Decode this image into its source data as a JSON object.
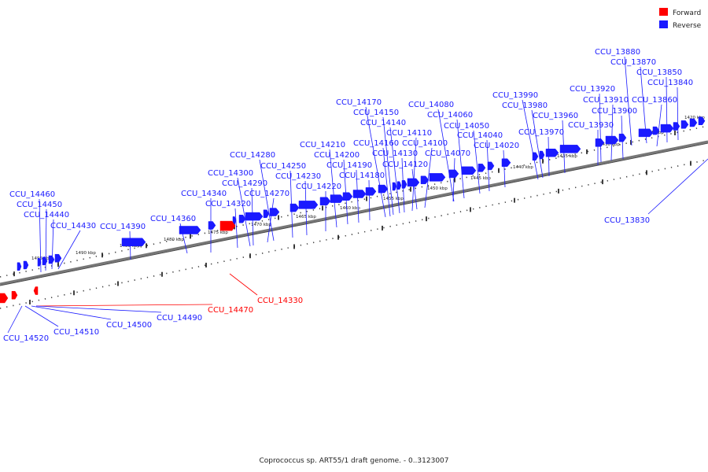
{
  "legend": {
    "forward_label": "Forward",
    "reverse_label": "Reverse",
    "forward_color": "#ff0000",
    "reverse_color": "#1a1aff"
  },
  "caption": "Coprococcus sp. ART55/1 draft genome. - 0..3123007",
  "kbp_ticks": [
    "1420 kbp",
    "1425 kbp",
    "1430 kbp",
    "1435 kbp",
    "1440 kbp",
    "1445 kbp",
    "1450 kbp",
    "1455 kbp",
    "1460 kbp",
    "1465 kbp",
    "1470 kbp",
    "1475 kbp",
    "1480 kbp",
    "1485 kbp",
    "1490 kbp",
    "1495 kbp"
  ],
  "reverse_genes": [
    "CCU_13880",
    "CCU_13870",
    "CCU_13850",
    "CCU_13840",
    "CCU_13920",
    "CCU_13910",
    "CCU_13860",
    "CCU_13900",
    "CCU_13930",
    "CCU_13990",
    "CCU_13980",
    "CCU_13960",
    "CCU_13970",
    "CCU_14080",
    "CCU_14060",
    "CCU_14050",
    "CCU_14040",
    "CCU_14020",
    "CCU_14170",
    "CCU_14150",
    "CCU_14140",
    "CCU_14110",
    "CCU_14100",
    "CCU_14070",
    "CCU_14160",
    "CCU_14130",
    "CCU_14120",
    "CCU_14210",
    "CCU_14200",
    "CCU_14190",
    "CCU_14180",
    "CCU_14280",
    "CCU_14250",
    "CCU_14230",
    "CCU_14220",
    "CCU_14300",
    "CCU_14290",
    "CCU_14270",
    "CCU_14340",
    "CCU_14320",
    "CCU_14360",
    "CCU_14390",
    "CCU_14460",
    "CCU_14450",
    "CCU_14440",
    "CCU_14430",
    "CCU_13830",
    "CCU_14490",
    "CCU_14500",
    "CCU_14510",
    "CCU_14520"
  ],
  "forward_genes": [
    "CCU_14330",
    "CCU_14470"
  ]
}
